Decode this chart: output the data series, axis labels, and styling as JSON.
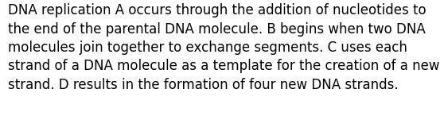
{
  "line1": "DNA replication A occurs through the addition of nucleotides to",
  "line2": "the end of the parental DNA molecule. B begins when two DNA",
  "line3": "molecules join together to exchange segments. C uses each",
  "line4": "strand of a DNA molecule as a template for the creation of a new",
  "line5": "strand. D results in the formation of four new DNA strands.",
  "background_color": "#ffffff",
  "text_color": "#000000",
  "font_size": 12.0,
  "fig_width": 5.58,
  "fig_height": 1.46,
  "dpi": 100,
  "border_color": "#cccccc"
}
